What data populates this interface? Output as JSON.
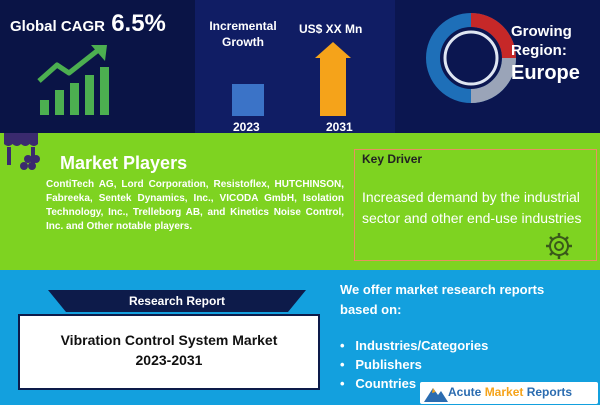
{
  "cagr": {
    "label": "Global CAGR",
    "value": "6.5%"
  },
  "growth": {
    "label_line1": "Incremental",
    "label_line2": "Growth",
    "value_label": "US$ XX Mn",
    "year_start": "2023",
    "year_end": "2031"
  },
  "region": {
    "line1": "Growing",
    "line2": "Region:",
    "name": "Europe"
  },
  "market_players": {
    "title": "Market Players",
    "body": "ContiTech AG, Lord Corporation, Resistoflex, HUTCHINSON, Fabreeka, Sentek Dynamics, Inc., VICODA GmbH, Isolation Technology, Inc., Trelleborg AB, and Kinetics Noise Control, Inc. and Other notable players."
  },
  "key_driver": {
    "title": "Key Driver",
    "body": "Increased demand by the industrial sector and other end-use industries"
  },
  "research_report": {
    "tag": "Research Report",
    "title_line1": "Vibration Control System Market",
    "title_line2": "2023-2031"
  },
  "offer": {
    "intro": "We offer market research reports based on:",
    "items": [
      "Industries/Categories",
      "Publishers",
      "Countries"
    ]
  },
  "brand": {
    "part1": "Acute ",
    "part2": "Market",
    "part3": " Reports"
  },
  "colors": {
    "navy": "#0a1446",
    "green": "#7ed321",
    "blue": "#13a0de",
    "accent_green": "#4caf50",
    "bar_blue": "#3b73c7",
    "orange": "#f5a31a"
  },
  "icons": [
    "growth-chart-icon",
    "growth-bars-icon",
    "region-donut-icon",
    "market-stall-icon",
    "gear-icon",
    "logo-mountain-icon"
  ]
}
